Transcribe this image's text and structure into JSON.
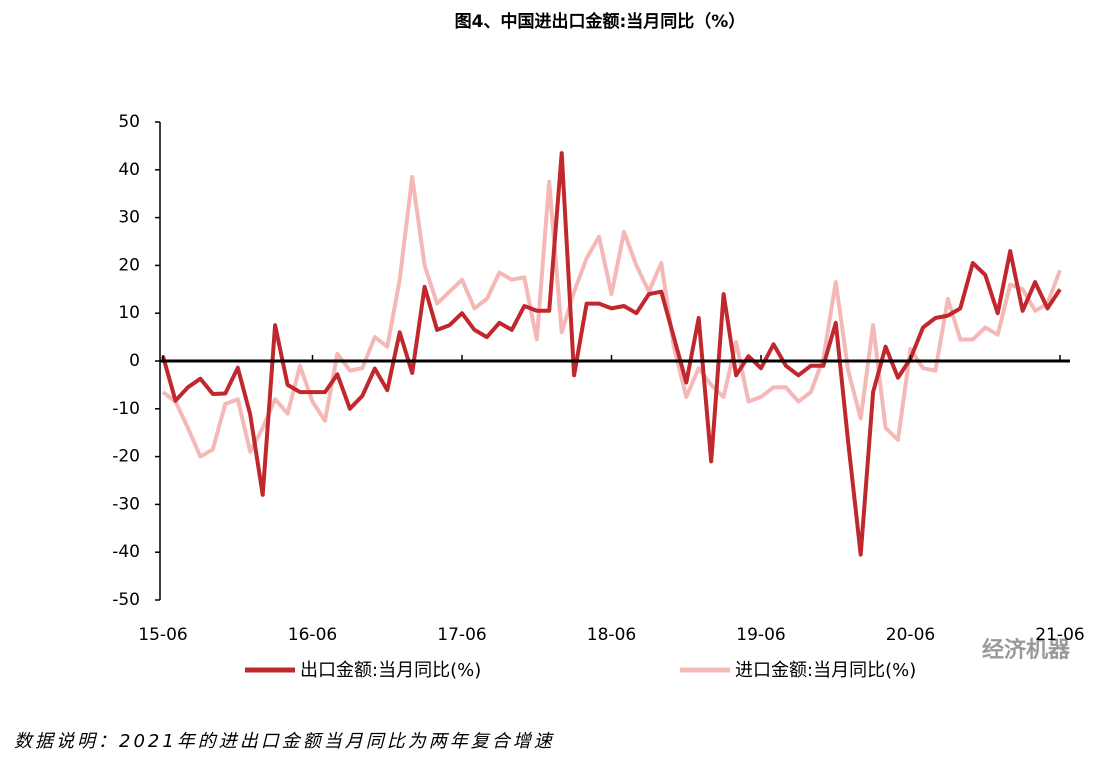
{
  "chart_data": {
    "type": "line",
    "title": "图4、中国进出口金额:当月同比（%）",
    "categories": [
      "15-06",
      null,
      null,
      null,
      null,
      null,
      null,
      null,
      null,
      null,
      null,
      null,
      "16-06",
      null,
      null,
      null,
      null,
      null,
      null,
      null,
      null,
      null,
      null,
      null,
      "17-06",
      null,
      null,
      null,
      null,
      null,
      null,
      null,
      null,
      null,
      null,
      null,
      "18-06",
      null,
      null,
      null,
      null,
      null,
      null,
      null,
      null,
      null,
      null,
      null,
      "19-06",
      null,
      null,
      null,
      null,
      null,
      null,
      null,
      null,
      null,
      null,
      null,
      "20-06",
      null,
      null,
      null,
      null,
      null,
      null,
      null,
      null,
      null,
      null,
      null,
      "21-06"
    ],
    "series": [
      {
        "name": "出口金额:当月同比(%)",
        "color": "#c0282d",
        "values": [
          1,
          -8.3,
          -5.5,
          -3.7,
          -6.9,
          -6.8,
          -1.4,
          -11.2,
          -28,
          7.5,
          -5,
          -6.5,
          -6.5,
          -6.5,
          -2.8,
          -10,
          -7.3,
          -1.6,
          -6.1,
          6,
          -2.5,
          15.5,
          6.5,
          7.5,
          10,
          6.5,
          5,
          8,
          6.5,
          11.5,
          10.5,
          10.5,
          43.5,
          -3,
          12,
          12,
          11,
          11.5,
          10,
          14,
          14.5,
          5,
          -4.5,
          9,
          -21,
          14,
          -3,
          1,
          -1.5,
          3.5,
          -1,
          -3,
          -1,
          -1,
          8,
          -17,
          -40.5,
          -6.5,
          3,
          -3.5,
          0.5,
          7,
          9,
          9.5,
          11,
          20.5,
          18,
          10,
          23,
          10.5,
          16.5,
          11,
          15
        ]
      },
      {
        "name": "进口金额:当月同比(%)",
        "color": "#f4b8b6",
        "values": [
          -6.5,
          -8.5,
          -14,
          -20,
          -18.5,
          -9,
          -8,
          -19,
          -14,
          -8,
          -11,
          -1,
          -8.5,
          -12.5,
          1.5,
          -2,
          -1.5,
          5,
          3,
          17,
          38.5,
          20,
          12,
          14.5,
          17,
          11,
          13,
          18.5,
          17,
          17.5,
          4.5,
          37.5,
          6,
          14.5,
          21.5,
          26,
          14,
          27,
          20,
          14.5,
          20.5,
          3,
          -7.5,
          -1.5,
          -5,
          -7.5,
          4,
          -8.5,
          -7.5,
          -5.5,
          -5.5,
          -8.5,
          -6.5,
          0.5,
          16.5,
          -2,
          -12,
          7.5,
          -14,
          -16.5,
          2.5,
          -1.5,
          -2,
          13,
          4.5,
          4.5,
          7,
          5.5,
          16,
          15,
          10.5,
          12,
          19
        ]
      }
    ],
    "ylim": [
      -50,
      50
    ],
    "yticks": [
      -50,
      -40,
      -30,
      -20,
      -10,
      0,
      10,
      20,
      30,
      40,
      50
    ],
    "grid": false,
    "legend": "bottom",
    "note": "数据说明：2021年的进出口金额当月同比为两年复合增速",
    "watermark": "经济机器"
  }
}
